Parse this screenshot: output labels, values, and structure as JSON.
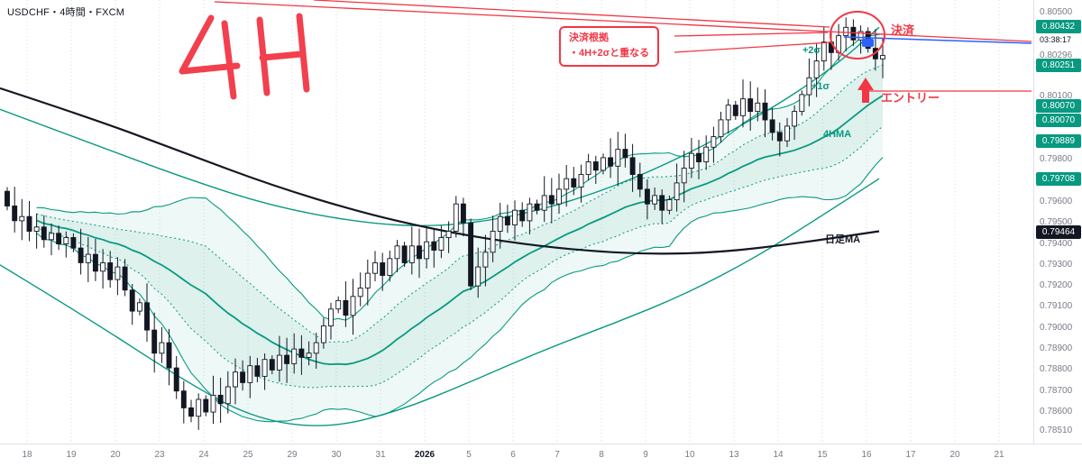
{
  "window": {
    "title": "USDCHF・4時間・FXCM"
  },
  "colors": {
    "teal": "#089981",
    "teal_fill": "rgba(8,153,129,0.07)",
    "red": "#f23645",
    "blue": "#2962ff",
    "dark": "#131722",
    "axis_text": "#787b86",
    "grid": "#d8dbe3"
  },
  "price_axis": {
    "countdown": "03:38:17",
    "labels": [
      {
        "text": "0.80500",
        "price": 0.805
      },
      {
        "text": "0.80296",
        "price": 0.80296
      },
      {
        "text": "0.80100",
        "price": 0.801
      },
      {
        "text": "0.79800",
        "price": 0.798
      },
      {
        "text": "0.79600",
        "price": 0.796
      },
      {
        "text": "0.79500",
        "price": 0.795
      },
      {
        "text": "0.79400",
        "price": 0.794
      },
      {
        "text": "0.79300",
        "price": 0.793
      },
      {
        "text": "0.79200",
        "price": 0.792
      },
      {
        "text": "0.79100",
        "price": 0.791
      },
      {
        "text": "0.79000",
        "price": 0.79
      },
      {
        "text": "0.78900",
        "price": 0.789
      },
      {
        "text": "0.78800",
        "price": 0.788
      },
      {
        "text": "0.78700",
        "price": 0.787
      },
      {
        "text": "0.78600",
        "price": 0.786
      },
      {
        "text": "0.78510",
        "price": 0.7851
      }
    ],
    "badges": [
      {
        "text": "0.80432",
        "price": 0.80432,
        "style": "teal"
      },
      {
        "text": "0.80251",
        "price": 0.80251,
        "style": "teal"
      },
      {
        "text": "0.80070",
        "price": 0.8007,
        "style": "teal"
      },
      {
        "text": "0.80070",
        "price": 0.8007,
        "style": "teal"
      },
      {
        "text": "0.79889",
        "price": 0.79889,
        "style": "teal"
      },
      {
        "text": "0.79708",
        "price": 0.79708,
        "style": "teal"
      },
      {
        "text": "0.79464",
        "price": 0.79464,
        "style": "dark"
      }
    ]
  },
  "time_axis": {
    "labels": [
      "18",
      "19",
      "20",
      "23",
      "24",
      "25",
      "29",
      "30",
      "31",
      "2026",
      "5",
      "6",
      "7",
      "8",
      "9",
      "10",
      "13",
      "14",
      "15",
      "16",
      "17",
      "20",
      "21"
    ]
  },
  "annotations": {
    "handwritten": "4H",
    "callout_line1": "決済根拠",
    "callout_line2": "・4H+2σと重なる",
    "exit_label": "決済",
    "entry_label": "エントリー",
    "daily_ma_label": "日足MA",
    "band_label_upper2": "+2σ",
    "band_label_upper1": "+1σ",
    "band_label_basis": "4HMA"
  },
  "chart_data": {
    "type": "candlestick",
    "symbol": "USDCHF",
    "timeframe": "4時間",
    "provider": "FXCM",
    "ylim": [
      0.7845,
      0.8056
    ],
    "candles": {
      "first_open": 0.7965,
      "closes": [
        0.7958,
        0.7951,
        0.7953,
        0.7946,
        0.7948,
        0.7942,
        0.7945,
        0.794,
        0.7943,
        0.7938,
        0.7931,
        0.7935,
        0.7927,
        0.7931,
        0.7923,
        0.7929,
        0.7918,
        0.7908,
        0.7912,
        0.7899,
        0.7888,
        0.7893,
        0.7881,
        0.787,
        0.7862,
        0.7858,
        0.7866,
        0.786,
        0.7868,
        0.7864,
        0.7872,
        0.7879,
        0.7874,
        0.7882,
        0.7877,
        0.7885,
        0.788,
        0.7887,
        0.7883,
        0.789,
        0.7886,
        0.7888,
        0.7893,
        0.7901,
        0.7909,
        0.7913,
        0.7906,
        0.7915,
        0.7919,
        0.7926,
        0.7931,
        0.7925,
        0.7933,
        0.7939,
        0.7931,
        0.7939,
        0.7933,
        0.7941,
        0.7937,
        0.7943,
        0.7946,
        0.7959,
        0.795,
        0.792,
        0.7929,
        0.7936,
        0.7946,
        0.7953,
        0.7949,
        0.7956,
        0.7951,
        0.7959,
        0.7956,
        0.7963,
        0.7959,
        0.7966,
        0.7971,
        0.7967,
        0.7973,
        0.7979,
        0.7975,
        0.7981,
        0.7977,
        0.7985,
        0.7981,
        0.7973,
        0.7966,
        0.7959,
        0.7963,
        0.7956,
        0.7961,
        0.7969,
        0.7976,
        0.7983,
        0.7979,
        0.7986,
        0.7991,
        0.7999,
        0.8006,
        0.8001,
        0.8009,
        0.8003,
        0.8007,
        0.7999,
        0.7993,
        0.7989,
        0.7996,
        0.8003,
        0.8011,
        0.8019,
        0.8027,
        0.8036,
        0.8031,
        0.8039,
        0.8043,
        0.8037,
        0.8041,
        0.8033,
        0.8028,
        0.80296
      ]
    },
    "indicators": {
      "bollinger": {
        "period": 28,
        "inner_mult": 0.72,
        "outer_mult": 1.45,
        "labels": {
          "upper2": "+2σ",
          "upper1": "+1σ",
          "basis": "4HMA"
        },
        "last_values": {
          "upper2": 0.80251,
          "upper1": 0.8007,
          "basis": 0.79889,
          "lower1": 0.79708
        }
      },
      "daily_ma": {
        "label": "日足MA",
        "last_value": 0.79464,
        "points": [
          [
            0,
            0.8014
          ],
          [
            100,
            0.8
          ],
          [
            200,
            0.7984
          ],
          [
            300,
            0.7968
          ],
          [
            400,
            0.7955
          ],
          [
            480,
            0.7947
          ],
          [
            560,
            0.7941
          ],
          [
            640,
            0.7937
          ],
          [
            720,
            0.7935
          ],
          [
            800,
            0.7936
          ],
          [
            880,
            0.794
          ],
          [
            975,
            0.7946
          ]
        ]
      },
      "daily_band_upper": {
        "last_value": 0.80432,
        "points": [
          [
            0,
            0.8004
          ],
          [
            100,
            0.7988
          ],
          [
            200,
            0.7972
          ],
          [
            300,
            0.7958
          ],
          [
            400,
            0.795
          ],
          [
            480,
            0.7948
          ],
          [
            560,
            0.7952
          ],
          [
            640,
            0.7961
          ],
          [
            720,
            0.7974
          ],
          [
            800,
            0.7991
          ],
          [
            870,
            0.8008
          ],
          [
            930,
            0.8026
          ],
          [
            975,
            0.8043
          ]
        ]
      },
      "daily_band_lower": {
        "last_value": 0.79708,
        "points": [
          [
            0,
            0.793
          ],
          [
            100,
            0.7904
          ],
          [
            200,
            0.7876
          ],
          [
            280,
            0.7857
          ],
          [
            360,
            0.7852
          ],
          [
            440,
            0.786
          ],
          [
            520,
            0.7874
          ],
          [
            600,
            0.7889
          ],
          [
            680,
            0.7902
          ],
          [
            760,
            0.7916
          ],
          [
            840,
            0.7934
          ],
          [
            910,
            0.7953
          ],
          [
            975,
            0.7971
          ]
        ]
      }
    }
  }
}
